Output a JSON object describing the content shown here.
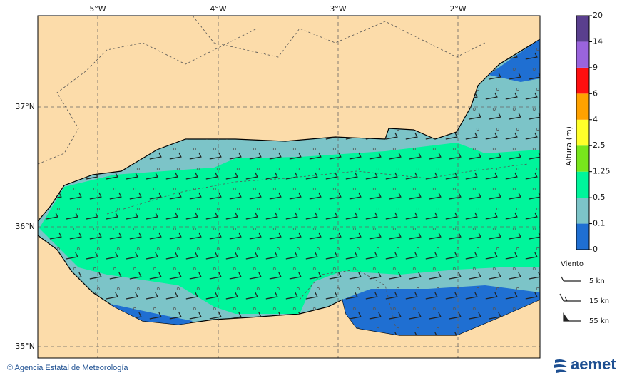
{
  "map": {
    "lon_labels": [
      "5°W",
      "4°W",
      "3°W",
      "2°W"
    ],
    "lat_labels": [
      "37°N",
      "36°N",
      "35°N"
    ],
    "legend": {
      "title": "Altura (m)",
      "labels": [
        "0",
        "0.1",
        "0.5",
        "1.25",
        "2.5",
        "4",
        "6",
        "9",
        "14",
        "20"
      ],
      "colors": [
        "#1f6fd2",
        "#7cc4c8",
        "#00f59b",
        "#78e61c",
        "#ffff2a",
        "#ffa200",
        "#ff1010",
        "#9a64dc",
        "#5a3f8e"
      ]
    },
    "wind_legend": {
      "title": "Viento",
      "items": [
        "5 kn",
        "15 kn",
        "55 kn"
      ]
    }
  },
  "footer": {
    "credit": "© Agencia Estatal de Meteorología",
    "logo": "aemet"
  }
}
